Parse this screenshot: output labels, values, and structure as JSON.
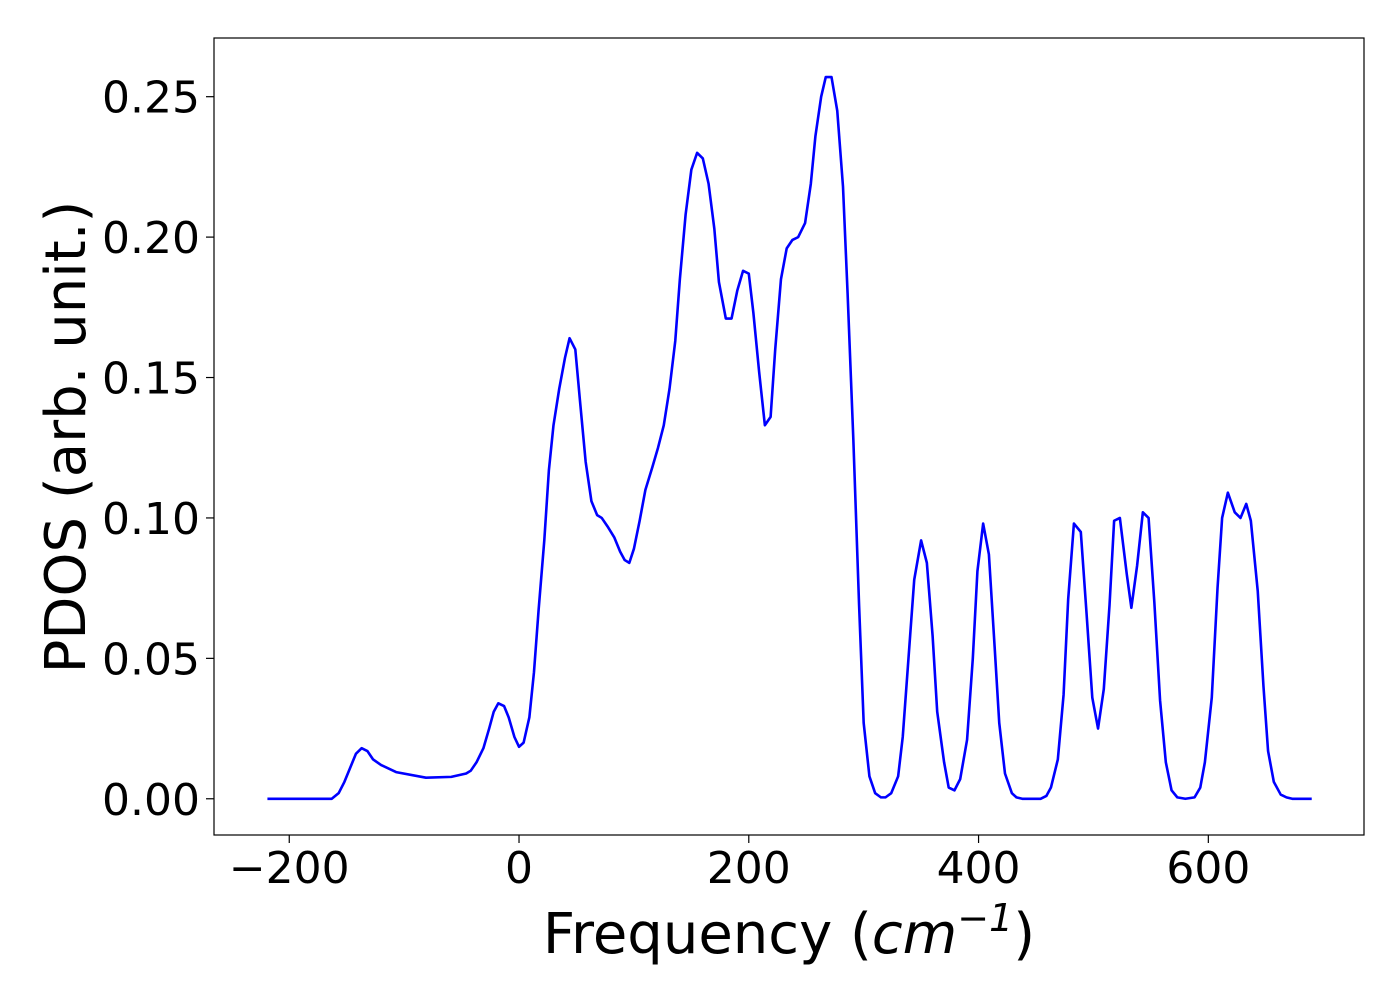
{
  "chart_data": {
    "type": "line",
    "xlabel_parts": [
      "Frequency (",
      "cm",
      "−1",
      ")"
    ],
    "ylabel": "PDOS (arb. unit.)",
    "xlim": [
      -265.5,
      735.5
    ],
    "ylim": [
      -0.0129,
      0.2709
    ],
    "xticks": [
      {
        "value": -200,
        "label": "−200"
      },
      0,
      200,
      400,
      600
    ],
    "yticks": [
      {
        "value": 0,
        "label": "0.00"
      },
      0.05,
      {
        "value": 0.1,
        "label": "0.10"
      },
      0.15,
      {
        "value": 0.2,
        "label": "0.20"
      },
      0.25
    ],
    "series": [
      {
        "color": "#0000ff",
        "x": [
          -219,
          -163,
          -157,
          -152,
          -147,
          -142,
          -137,
          -132,
          -127,
          -120,
          -107,
          -81,
          -59,
          -46,
          -42,
          -37,
          -31,
          -26,
          -22,
          -18,
          -13,
          -9,
          -4,
          0,
          4,
          9,
          13,
          17,
          22,
          26,
          30,
          35,
          40,
          44,
          49,
          53,
          58,
          63,
          68,
          72,
          77,
          83,
          88,
          92,
          96,
          100,
          105,
          110,
          116,
          121,
          126,
          131,
          136,
          140,
          145,
          150,
          155,
          160,
          165,
          170,
          174,
          180,
          185,
          190,
          195,
          200,
          204,
          209,
          214,
          219,
          223,
          228,
          233,
          238,
          243,
          249,
          254,
          258,
          263,
          267,
          272,
          277,
          282,
          286,
          291,
          296,
          300,
          305,
          310,
          315,
          319,
          324,
          330,
          334,
          339,
          344,
          350,
          355,
          360,
          364,
          370,
          374,
          379,
          384,
          390,
          395,
          399,
          404,
          409,
          414,
          418,
          423,
          429,
          433,
          438,
          454,
          459,
          463,
          469,
          474,
          478,
          483,
          489,
          494,
          499,
          504,
          509,
          514,
          518,
          523,
          529,
          533,
          538,
          543,
          548,
          553,
          558,
          563,
          568,
          573,
          580,
          588,
          593,
          597,
          603,
          608,
          612,
          617,
          623,
          628,
          633,
          637,
          643,
          648,
          652,
          657,
          663,
          668,
          673,
          690
        ],
        "values": [
          0,
          0,
          0.002,
          0.006,
          0.011,
          0.016,
          0.018,
          0.017,
          0.014,
          0.012,
          0.0095,
          0.0075,
          0.0078,
          0.009,
          0.01,
          0.013,
          0.018,
          0.025,
          0.031,
          0.034,
          0.033,
          0.029,
          0.022,
          0.0185,
          0.02,
          0.029,
          0.045,
          0.067,
          0.092,
          0.117,
          0.133,
          0.146,
          0.157,
          0.164,
          0.16,
          0.142,
          0.12,
          0.106,
          0.101,
          0.1,
          0.097,
          0.093,
          0.088,
          0.085,
          0.084,
          0.089,
          0.099,
          0.11,
          0.118,
          0.125,
          0.133,
          0.146,
          0.163,
          0.185,
          0.208,
          0.224,
          0.23,
          0.228,
          0.219,
          0.203,
          0.184,
          0.171,
          0.171,
          0.181,
          0.188,
          0.187,
          0.173,
          0.152,
          0.133,
          0.136,
          0.16,
          0.185,
          0.196,
          0.199,
          0.2,
          0.205,
          0.219,
          0.236,
          0.25,
          0.257,
          0.257,
          0.245,
          0.218,
          0.18,
          0.128,
          0.069,
          0.027,
          0.008,
          0.002,
          0.0005,
          0.0005,
          0.002,
          0.008,
          0.022,
          0.05,
          0.078,
          0.092,
          0.084,
          0.058,
          0.031,
          0.013,
          0.004,
          0.003,
          0.007,
          0.021,
          0.05,
          0.081,
          0.098,
          0.087,
          0.054,
          0.027,
          0.009,
          0.002,
          0.0005,
          0,
          0,
          0.001,
          0.004,
          0.014,
          0.037,
          0.071,
          0.098,
          0.095,
          0.066,
          0.036,
          0.025,
          0.039,
          0.069,
          0.099,
          0.1,
          0.08,
          0.068,
          0.083,
          0.102,
          0.1,
          0.07,
          0.035,
          0.013,
          0.003,
          0.0005,
          0,
          0.0005,
          0.004,
          0.013,
          0.036,
          0.075,
          0.1,
          0.109,
          0.102,
          0.1,
          0.105,
          0.099,
          0.074,
          0.04,
          0.017,
          0.006,
          0.0015,
          0.0005,
          0,
          0
        ]
      }
    ]
  }
}
